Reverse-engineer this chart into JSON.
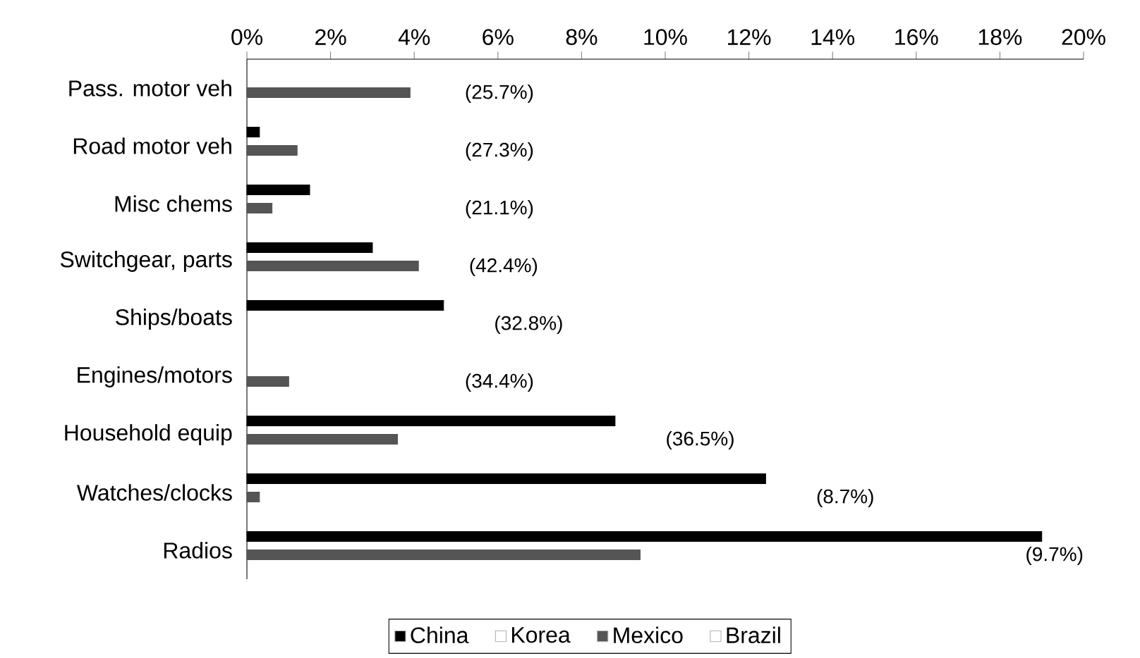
{
  "chart_data": {
    "type": "bar",
    "orientation": "horizontal",
    "categories": [
      "Pass. motor veh",
      "Road motor veh",
      "Misc chems",
      "Switchgear, parts",
      "Ships/boats",
      "Engines/motors",
      "Household equip",
      "Watches/clocks",
      "Radios"
    ],
    "series": [
      {
        "name": "China",
        "color": "#000000",
        "values": [
          null,
          0.3,
          1.5,
          3.0,
          4.7,
          null,
          8.8,
          12.4,
          19.0
        ]
      },
      {
        "name": "Korea",
        "color": "#ffffff",
        "values": [
          null,
          null,
          null,
          null,
          null,
          null,
          null,
          null,
          null
        ]
      },
      {
        "name": "Mexico",
        "color": "#555555",
        "values": [
          3.9,
          1.2,
          0.6,
          4.1,
          null,
          1.0,
          3.6,
          0.3,
          9.4
        ]
      },
      {
        "name": "Brazil",
        "color": "#ffffff",
        "values": [
          null,
          null,
          null,
          null,
          null,
          null,
          null,
          null,
          null
        ]
      }
    ],
    "xlim": [
      0,
      20
    ],
    "xticks": [
      {
        "value": 0,
        "label": "0%"
      },
      {
        "value": 2,
        "label": "2%"
      },
      {
        "value": 4,
        "label": "4%"
      },
      {
        "value": 6,
        "label": "6%"
      },
      {
        "value": 8,
        "label": "8%"
      },
      {
        "value": 10,
        "label": "10%"
      },
      {
        "value": 12,
        "label": "12%"
      },
      {
        "value": 14,
        "label": "14%"
      },
      {
        "value": 16,
        "label": "16%"
      },
      {
        "value": 18,
        "label": "18%"
      },
      {
        "value": 20,
        "label": "20%"
      }
    ],
    "annotations": [
      "(25.7%)",
      "(27.3%)",
      "(21.1%)",
      "(42.4%)",
      "(32.8%)",
      "(34.4%)",
      "(36.5%)",
      "(8.7%)",
      "(9.7%)"
    ],
    "grid": false,
    "legend": "bottom"
  }
}
